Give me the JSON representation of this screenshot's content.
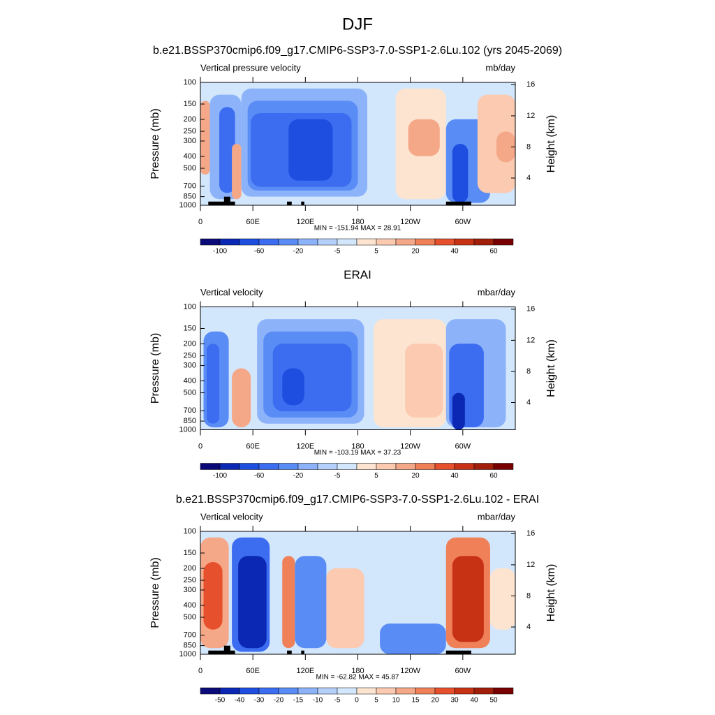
{
  "title": "DJF",
  "chart_data": [
    {
      "type": "contour",
      "title": "b.e21.BSSP370cmip6.f09_g17.CMIP6-SSP3-7.0-SSP1-2.6Lu.102 (yrs 2045-2069)",
      "left_label": "Vertical pressure velocity",
      "right_label": "mb/day",
      "y_label": "Pressure (mb)",
      "y2_label": "Height (km)",
      "log_y": true,
      "ylim": [
        1000,
        100
      ],
      "yticks": [
        100,
        150,
        200,
        250,
        300,
        400,
        500,
        700,
        850,
        1000
      ],
      "y2lim": [
        0.5,
        16.3
      ],
      "y2ticks": [
        4,
        8,
        12,
        16
      ],
      "xlim": [
        0,
        360
      ],
      "xticks": [
        0,
        {
          "value": 60,
          "label": "60E"
        },
        {
          "value": 120,
          "label": "120E"
        },
        180,
        {
          "value": 240,
          "label": "120W"
        },
        {
          "value": 300,
          "label": "60W"
        }
      ],
      "stats": "MIN = -151.94  MAX =  28.91",
      "colorbar_labels": [
        -100,
        -60,
        -20,
        -5,
        5,
        20,
        40,
        60
      ],
      "colorbar_label_every": 2,
      "colorbar_colors": [
        "#0a0a78",
        "#0a28b4",
        "#1e4ee0",
        "#3c6cf0",
        "#5a8cf5",
        "#8cb2fa",
        "#b4d0fa",
        "#d2e6fc",
        "#fde4d0",
        "#fbcab0",
        "#f5a888",
        "#f08058",
        "#e6502d",
        "#c83214",
        "#a01e0a",
        "#780000"
      ]
    },
    {
      "type": "contour",
      "title": "ERAI",
      "left_label": "Vertical velocity",
      "right_label": "mbar/day",
      "y_label": "Pressure (mb)",
      "y2_label": "Height (km)",
      "log_y": true,
      "ylim": [
        1000,
        100
      ],
      "yticks": [
        100,
        150,
        200,
        250,
        300,
        400,
        500,
        700,
        850,
        1000
      ],
      "y2lim": [
        0.5,
        16.3
      ],
      "y2ticks": [
        4,
        8,
        12,
        16
      ],
      "xlim": [
        0,
        360
      ],
      "xticks": [
        0,
        {
          "value": 60,
          "label": "60E"
        },
        {
          "value": 120,
          "label": "120E"
        },
        180,
        {
          "value": 240,
          "label": "120W"
        },
        {
          "value": 300,
          "label": "60W"
        }
      ],
      "stats": "MIN = -103.19  MAX =  37.23",
      "colorbar_labels": [
        -100,
        -60,
        -20,
        -5,
        5,
        20,
        40,
        60
      ],
      "colorbar_label_every": 2,
      "colorbar_colors": [
        "#0a0a78",
        "#0a28b4",
        "#1e4ee0",
        "#3c6cf0",
        "#5a8cf5",
        "#8cb2fa",
        "#b4d0fa",
        "#d2e6fc",
        "#fde4d0",
        "#fbcab0",
        "#f5a888",
        "#f08058",
        "#e6502d",
        "#c83214",
        "#a01e0a",
        "#780000"
      ]
    },
    {
      "type": "contour",
      "title": "b.e21.BSSP370cmip6.f09_g17.CMIP6-SSP3-7.0-SSP1-2.6Lu.102 - ERAI",
      "left_label": "Vertical velocity",
      "right_label": "mbar/day",
      "y_label": "Pressure (mb)",
      "y2_label": "Height (km)",
      "log_y": true,
      "ylim": [
        1000,
        100
      ],
      "yticks": [
        100,
        150,
        200,
        250,
        300,
        400,
        500,
        700,
        850,
        1000
      ],
      "y2lim": [
        0.5,
        16.3
      ],
      "y2ticks": [
        4,
        8,
        12,
        16
      ],
      "xlim": [
        0,
        360
      ],
      "xticks": [
        0,
        {
          "value": 60,
          "label": "60E"
        },
        {
          "value": 120,
          "label": "120E"
        },
        180,
        {
          "value": 240,
          "label": "120W"
        },
        {
          "value": 300,
          "label": "60W"
        }
      ],
      "stats": "MIN = -62.82  MAX =  45.87",
      "colorbar_labels": [
        -50,
        -40,
        -30,
        -20,
        -15,
        -10,
        -5,
        0,
        5,
        10,
        15,
        20,
        30,
        40,
        50
      ],
      "colorbar_label_every": 1,
      "colorbar_colors": [
        "#0a0a78",
        "#0a28b4",
        "#1e4ee0",
        "#3c6cf0",
        "#5a8cf5",
        "#8cb2fa",
        "#b4d0fa",
        "#d2e6fc",
        "#fde4d0",
        "#fbcab0",
        "#f5a888",
        "#f08058",
        "#e6502d",
        "#c83214",
        "#a01e0a",
        "#780000"
      ]
    }
  ]
}
